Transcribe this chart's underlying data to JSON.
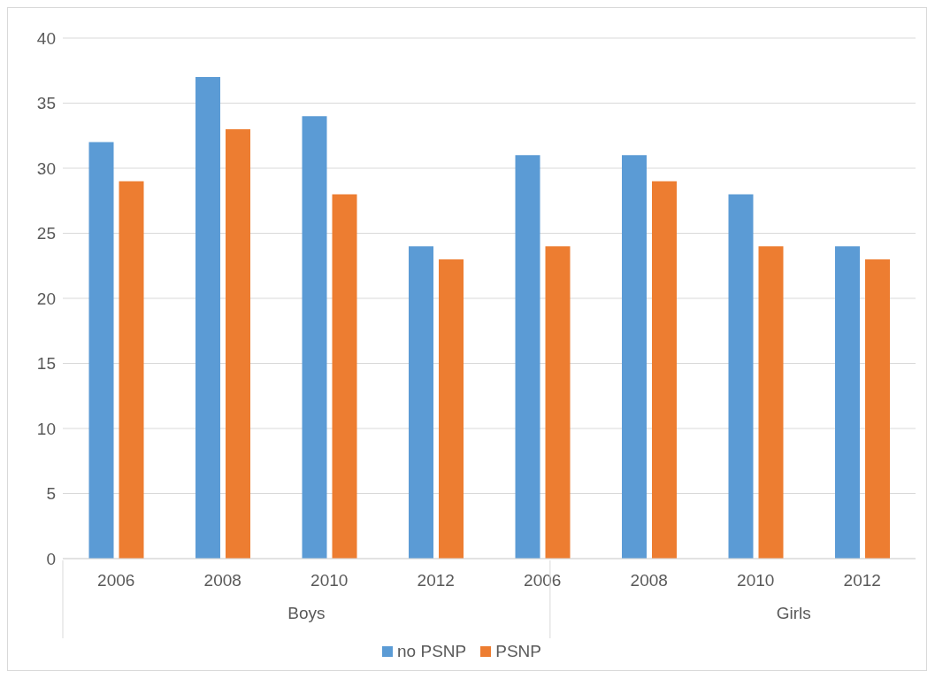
{
  "chart_data": {
    "type": "bar",
    "categories": [
      "2006",
      "2008",
      "2010",
      "2012",
      "2006",
      "2008",
      "2010",
      "2012"
    ],
    "annotations": [
      "Boys",
      "Girls"
    ],
    "series": [
      {
        "name": "no PSNP",
        "color": "#5b9bd5",
        "values": [
          32,
          37,
          34,
          24,
          31,
          31,
          28,
          24
        ]
      },
      {
        "name": "PSNP",
        "color": "#ed7d31",
        "values": [
          29,
          33,
          28,
          23,
          24,
          29,
          24,
          23
        ]
      }
    ],
    "ylim": [
      0,
      40
    ],
    "yticks": [
      0,
      5,
      10,
      15,
      20,
      25,
      30,
      35,
      40
    ],
    "grid": "y",
    "legend": "bottom"
  }
}
